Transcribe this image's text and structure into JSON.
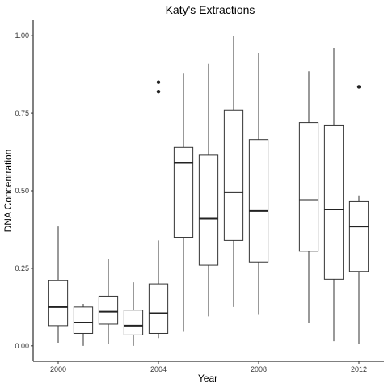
{
  "chart_data": {
    "type": "boxplot",
    "title": "Katy's Extractions",
    "xlabel": "Year",
    "ylabel": "DNA Concentration",
    "xlim": [
      1999,
      2013
    ],
    "ylim": [
      -0.05,
      1.05
    ],
    "x_ticks": [
      2000,
      2004,
      2008,
      2012
    ],
    "y_ticks": [
      0.0,
      0.25,
      0.5,
      0.75,
      1.0
    ],
    "y_tick_labels": [
      "0.00",
      "0.25",
      "0.50",
      "0.75",
      "1.00"
    ],
    "grid": false,
    "legend": "none",
    "boxes": [
      {
        "x": 2000,
        "whisker_low": 0.01,
        "q1": 0.065,
        "median": 0.125,
        "q3": 0.21,
        "whisker_high": 0.385,
        "outliers": []
      },
      {
        "x": 2001,
        "whisker_low": 0.0,
        "q1": 0.04,
        "median": 0.075,
        "q3": 0.125,
        "whisker_high": 0.135,
        "outliers": []
      },
      {
        "x": 2002,
        "whisker_low": 0.005,
        "q1": 0.07,
        "median": 0.11,
        "q3": 0.16,
        "whisker_high": 0.28,
        "outliers": []
      },
      {
        "x": 2003,
        "whisker_low": 0.0,
        "q1": 0.035,
        "median": 0.065,
        "q3": 0.115,
        "whisker_high": 0.205,
        "outliers": []
      },
      {
        "x": 2004,
        "whisker_low": 0.025,
        "q1": 0.04,
        "median": 0.105,
        "q3": 0.2,
        "whisker_high": 0.34,
        "outliers": [
          0.82,
          0.85
        ]
      },
      {
        "x": 2005,
        "whisker_low": 0.045,
        "q1": 0.35,
        "median": 0.59,
        "q3": 0.64,
        "whisker_high": 0.88,
        "outliers": []
      },
      {
        "x": 2006,
        "whisker_low": 0.095,
        "q1": 0.26,
        "median": 0.41,
        "q3": 0.615,
        "whisker_high": 0.91,
        "outliers": []
      },
      {
        "x": 2007,
        "whisker_low": 0.125,
        "q1": 0.34,
        "median": 0.495,
        "q3": 0.76,
        "whisker_high": 1.0,
        "outliers": []
      },
      {
        "x": 2008,
        "whisker_low": 0.1,
        "q1": 0.27,
        "median": 0.435,
        "q3": 0.665,
        "whisker_high": 0.945,
        "outliers": []
      },
      {
        "x": 2010,
        "whisker_low": 0.075,
        "q1": 0.305,
        "median": 0.47,
        "q3": 0.72,
        "whisker_high": 0.885,
        "outliers": []
      },
      {
        "x": 2011,
        "whisker_low": 0.015,
        "q1": 0.215,
        "median": 0.44,
        "q3": 0.71,
        "whisker_high": 0.96,
        "outliers": []
      },
      {
        "x": 2012,
        "whisker_low": 0.005,
        "q1": 0.24,
        "median": 0.385,
        "q3": 0.465,
        "whisker_high": 0.485,
        "outliers": [
          0.835
        ]
      }
    ],
    "colors": {
      "box_fill": "#ffffff",
      "box_stroke": "#333333",
      "median": "#222222",
      "outlier": "#222222",
      "axis": "#000000"
    }
  }
}
